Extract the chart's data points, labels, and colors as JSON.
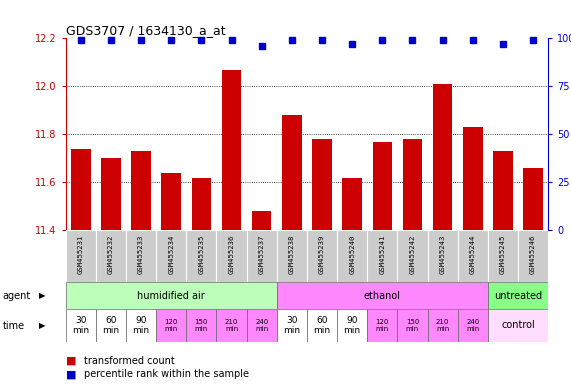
{
  "title": "GDS3707 / 1634130_a_at",
  "samples": [
    "GSM455231",
    "GSM455232",
    "GSM455233",
    "GSM455234",
    "GSM455235",
    "GSM455236",
    "GSM455237",
    "GSM455238",
    "GSM455239",
    "GSM455240",
    "GSM455241",
    "GSM455242",
    "GSM455243",
    "GSM455244",
    "GSM455245",
    "GSM455246"
  ],
  "bar_values": [
    11.74,
    11.7,
    11.73,
    11.64,
    11.62,
    12.07,
    11.48,
    11.88,
    11.78,
    11.62,
    11.77,
    11.78,
    12.01,
    11.83,
    11.73,
    11.66
  ],
  "percentile_values": [
    99,
    99,
    99,
    99,
    99,
    99,
    96,
    99,
    99,
    97,
    99,
    99,
    99,
    99,
    97,
    99
  ],
  "ylim": [
    11.4,
    12.2
  ],
  "yticks_left": [
    11.4,
    11.6,
    11.8,
    12.0,
    12.2
  ],
  "yticks_right": [
    0,
    25,
    50,
    75,
    100
  ],
  "bar_color": "#cc0000",
  "dot_color": "#0000cc",
  "background_color": "#ffffff",
  "agent_groups": [
    {
      "label": "humidified air",
      "start": 0,
      "end": 7,
      "color": "#bbffbb"
    },
    {
      "label": "ethanol",
      "start": 7,
      "end": 14,
      "color": "#ff88ff"
    },
    {
      "label": "untreated",
      "start": 14,
      "end": 16,
      "color": "#88ff88"
    }
  ],
  "time_labels": [
    "30\nmin",
    "60\nmin",
    "90\nmin",
    "120\nmin",
    "150\nmin",
    "210\nmin",
    "240\nmin",
    "30\nmin",
    "60\nmin",
    "90\nmin",
    "120\nmin",
    "150\nmin",
    "210\nmin",
    "240\nmin"
  ],
  "time_colors": [
    "#ffffff",
    "#ffffff",
    "#ffffff",
    "#ff88ff",
    "#ff88ff",
    "#ff88ff",
    "#ff88ff",
    "#ffffff",
    "#ffffff",
    "#ffffff",
    "#ff88ff",
    "#ff88ff",
    "#ff88ff",
    "#ff88ff"
  ],
  "control_color": "#ffddff",
  "legend_items": [
    {
      "color": "#cc0000",
      "label": "transformed count"
    },
    {
      "color": "#0000cc",
      "label": "percentile rank within the sample"
    }
  ]
}
